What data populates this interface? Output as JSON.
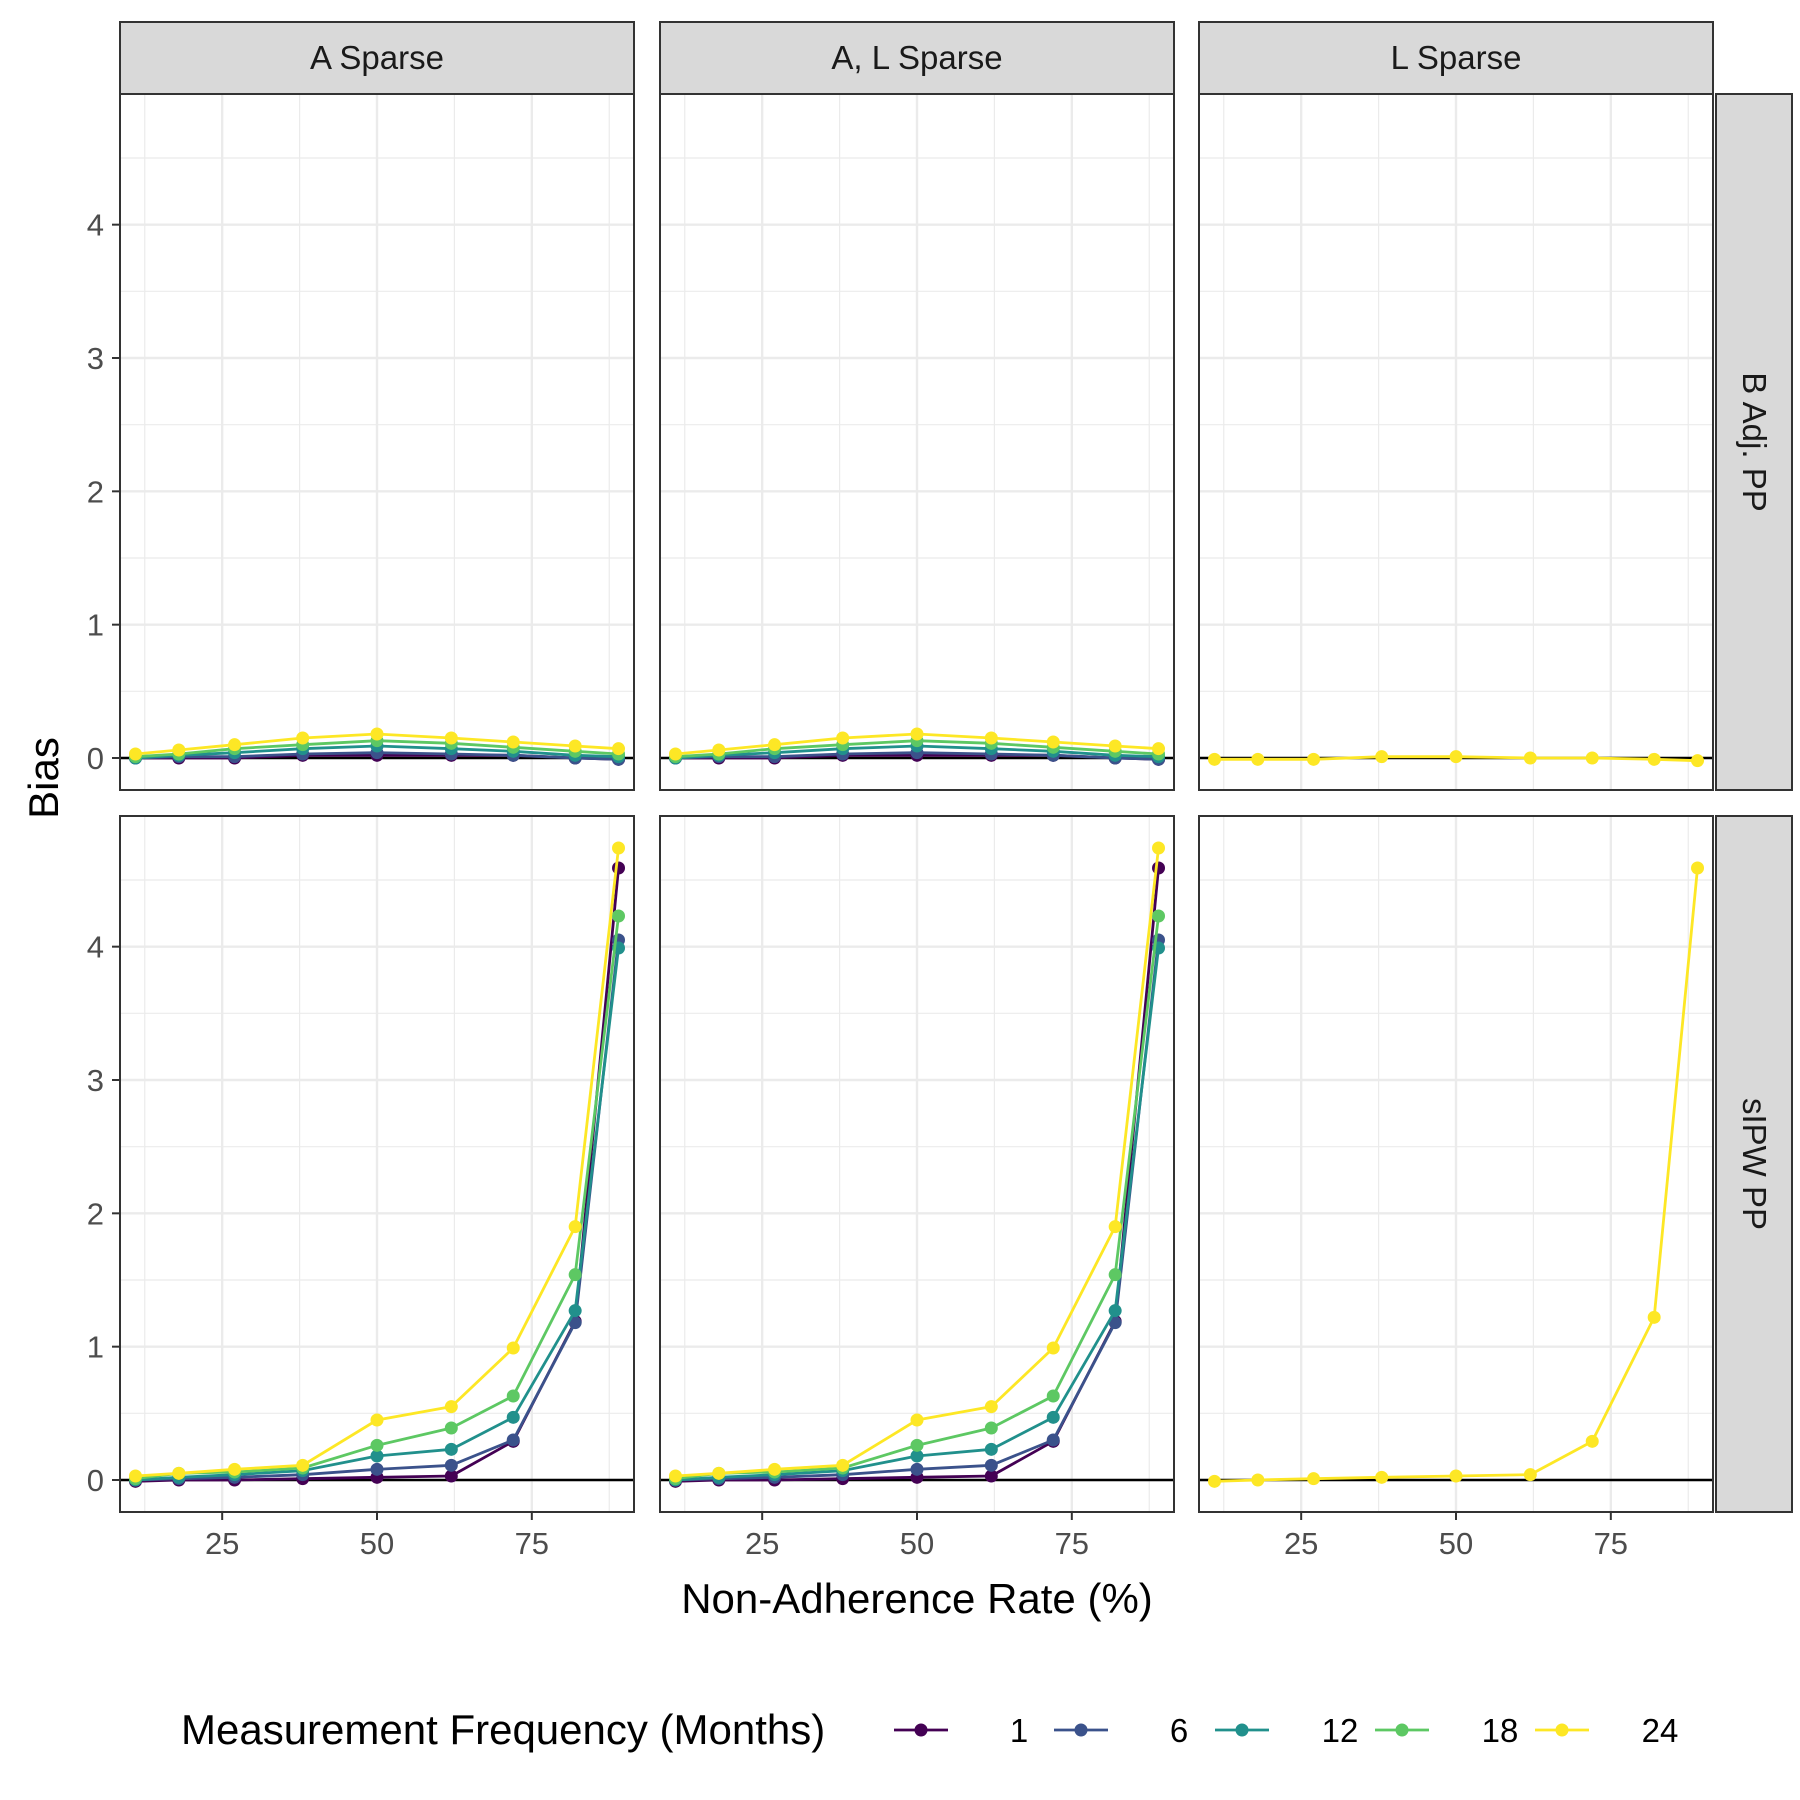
{
  "chart_data": {
    "type": "line",
    "xlabel": "Non-Adherence Rate (%)",
    "ylabel": "Bias",
    "x_ticks": [
      25,
      50,
      75
    ],
    "y_ticks": [
      0,
      1,
      2,
      3,
      4
    ],
    "xlim": [
      8.5,
      91.5
    ],
    "ylim": [
      -0.24,
      4.98
    ],
    "legend_title": "Measurement Frequency (Months)",
    "legend_position": "bottom",
    "col_facets": [
      "A Sparse",
      "A, L Sparse",
      "L Sparse"
    ],
    "row_facets": [
      "B Adj. PP",
      "sIPW PP"
    ],
    "colors": {
      "1": "#440154",
      "6": "#3B528B",
      "12": "#21908C",
      "18": "#5DC863",
      "24": "#FDE725",
      "zero_line": "#000000",
      "strip_fill": "#D9D9D9",
      "grid": "#EBEBEB"
    },
    "series_names": [
      "1",
      "6",
      "12",
      "18",
      "24"
    ],
    "x": [
      11,
      18,
      27,
      38,
      50,
      62,
      72,
      82,
      89
    ],
    "panels": [
      {
        "col": "A Sparse",
        "row": "B Adj. PP",
        "series": [
          {
            "name": "1",
            "values": [
              0.0,
              0.0,
              0.0,
              0.02,
              0.02,
              0.02,
              0.02,
              0.0,
              -0.01
            ]
          },
          {
            "name": "6",
            "values": [
              0.0,
              0.01,
              0.01,
              0.03,
              0.04,
              0.03,
              0.02,
              0.0,
              -0.01
            ]
          },
          {
            "name": "12",
            "values": [
              0.0,
              0.02,
              0.04,
              0.07,
              0.09,
              0.07,
              0.05,
              0.02,
              0.01
            ]
          },
          {
            "name": "18",
            "values": [
              0.01,
              0.03,
              0.07,
              0.1,
              0.13,
              0.11,
              0.08,
              0.05,
              0.03
            ]
          },
          {
            "name": "24",
            "values": [
              0.03,
              0.06,
              0.1,
              0.15,
              0.18,
              0.15,
              0.12,
              0.09,
              0.07
            ]
          }
        ]
      },
      {
        "col": "A, L Sparse",
        "row": "B Adj. PP",
        "series": [
          {
            "name": "1",
            "values": [
              0.0,
              0.0,
              0.0,
              0.02,
              0.02,
              0.02,
              0.02,
              0.0,
              -0.01
            ]
          },
          {
            "name": "6",
            "values": [
              0.0,
              0.01,
              0.01,
              0.03,
              0.04,
              0.03,
              0.02,
              0.0,
              -0.01
            ]
          },
          {
            "name": "12",
            "values": [
              0.0,
              0.02,
              0.04,
              0.07,
              0.09,
              0.07,
              0.05,
              0.02,
              0.01
            ]
          },
          {
            "name": "18",
            "values": [
              0.01,
              0.03,
              0.07,
              0.1,
              0.13,
              0.11,
              0.08,
              0.05,
              0.03
            ]
          },
          {
            "name": "24",
            "values": [
              0.03,
              0.06,
              0.1,
              0.15,
              0.18,
              0.15,
              0.12,
              0.09,
              0.07
            ]
          }
        ]
      },
      {
        "col": "L Sparse",
        "row": "B Adj. PP",
        "series": [
          {
            "name": "24",
            "values": [
              -0.01,
              -0.01,
              -0.01,
              0.01,
              0.01,
              0.0,
              0.0,
              -0.01,
              -0.02
            ]
          }
        ]
      },
      {
        "col": "A Sparse",
        "row": "sIPW PP",
        "series": [
          {
            "name": "1",
            "values": [
              -0.01,
              0.0,
              0.0,
              0.01,
              0.02,
              0.03,
              0.29,
              1.19,
              4.59
            ]
          },
          {
            "name": "6",
            "values": [
              0.0,
              0.01,
              0.02,
              0.04,
              0.08,
              0.11,
              0.3,
              1.18,
              4.05
            ]
          },
          {
            "name": "12",
            "values": [
              0.0,
              0.02,
              0.04,
              0.07,
              0.18,
              0.23,
              0.47,
              1.27,
              3.99
            ]
          },
          {
            "name": "18",
            "values": [
              0.01,
              0.05,
              0.06,
              0.09,
              0.26,
              0.39,
              0.63,
              1.54,
              4.23
            ]
          },
          {
            "name": "24",
            "values": [
              0.03,
              0.05,
              0.08,
              0.11,
              0.45,
              0.55,
              0.99,
              1.9,
              4.74
            ]
          }
        ]
      },
      {
        "col": "A, L Sparse",
        "row": "sIPW PP",
        "series": [
          {
            "name": "1",
            "values": [
              -0.01,
              0.0,
              0.0,
              0.01,
              0.02,
              0.03,
              0.29,
              1.19,
              4.59
            ]
          },
          {
            "name": "6",
            "values": [
              0.0,
              0.01,
              0.02,
              0.04,
              0.08,
              0.11,
              0.3,
              1.18,
              4.05
            ]
          },
          {
            "name": "12",
            "values": [
              0.0,
              0.02,
              0.04,
              0.07,
              0.18,
              0.23,
              0.47,
              1.27,
              3.99
            ]
          },
          {
            "name": "18",
            "values": [
              0.01,
              0.05,
              0.06,
              0.09,
              0.26,
              0.39,
              0.63,
              1.54,
              4.23
            ]
          },
          {
            "name": "24",
            "values": [
              0.03,
              0.05,
              0.08,
              0.11,
              0.45,
              0.55,
              0.99,
              1.9,
              4.74
            ]
          }
        ]
      },
      {
        "col": "L Sparse",
        "row": "sIPW PP",
        "series": [
          {
            "name": "24",
            "values": [
              -0.01,
              0.0,
              0.01,
              0.02,
              0.03,
              0.04,
              0.29,
              1.22,
              4.59
            ]
          }
        ]
      }
    ]
  }
}
